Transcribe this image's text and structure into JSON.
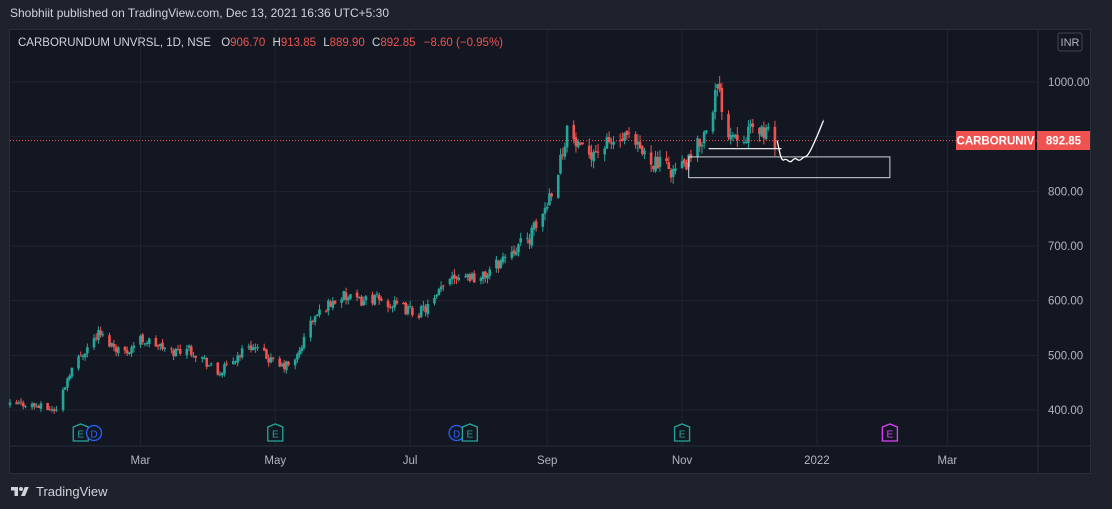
{
  "header": {
    "published_text": "Shobhiit published on TradingView.com, Dec 13, 2021 16:36 UTC+5:30"
  },
  "symbol_bar": {
    "name": "CARBORUNDUM UNVRSL, 1D, NSE",
    "o_label": "O",
    "o_value": "906.70",
    "h_label": "H",
    "h_value": "913.85",
    "l_label": "L",
    "l_value": "889.90",
    "c_label": "C",
    "c_value": "892.85",
    "change": "−8.60 (−0.95%)"
  },
  "currency_button": "INR",
  "price_tag": {
    "symbol": "CARBORUNIV",
    "price": "892.85"
  },
  "footer": {
    "brand": "TradingView"
  },
  "colors": {
    "up": "#26a69a",
    "down": "#ef5350",
    "background": "#131722",
    "text": "#b2b5be",
    "grid": "#1f2430"
  },
  "events": [
    {
      "date": "2021-02-02",
      "type": "E"
    },
    {
      "date": "2021-02-08",
      "type": "D"
    },
    {
      "date": "2021-05-01",
      "type": "E"
    },
    {
      "date": "2021-07-22",
      "type": "D"
    },
    {
      "date": "2021-07-28",
      "type": "E"
    },
    {
      "date": "2021-11-01",
      "type": "E"
    },
    {
      "date": "2022-02-03",
      "type": "E"
    }
  ],
  "chart_data": {
    "type": "candlestick",
    "symbol": "CARBORUNDUM UNVRSL",
    "interval": "1D",
    "exchange": "NSE",
    "x_range": [
      "2021-01-01",
      "2022-04-11"
    ],
    "x_tick_labels": [
      {
        "date": "2021-03-01",
        "label": "Mar"
      },
      {
        "date": "2021-05-01",
        "label": "May"
      },
      {
        "date": "2021-07-01",
        "label": "Jul"
      },
      {
        "date": "2021-09-01",
        "label": "Sep"
      },
      {
        "date": "2021-11-01",
        "label": "Nov"
      },
      {
        "date": "2022-01-01",
        "label": "2022"
      },
      {
        "date": "2022-03-01",
        "label": "Mar"
      }
    ],
    "y_range": [
      330,
      1040
    ],
    "y_ticks": [
      400,
      500,
      600,
      700,
      800,
      900,
      1000
    ],
    "y_tick_labels": [
      "400.00",
      "500.00",
      "600.00",
      "700.00",
      "800.00",
      "900.00",
      "1000.00"
    ],
    "last_price": 892.85,
    "price_path": [
      [
        "2021-01-01",
        408
      ],
      [
        "2021-01-08",
        412
      ],
      [
        "2021-01-15",
        405
      ],
      [
        "2021-01-22",
        400
      ],
      [
        "2021-01-28",
        470
      ],
      [
        "2021-02-03",
        505
      ],
      [
        "2021-02-10",
        540
      ],
      [
        "2021-02-16",
        520
      ],
      [
        "2021-02-22",
        505
      ],
      [
        "2021-03-01",
        530
      ],
      [
        "2021-03-08",
        520
      ],
      [
        "2021-03-15",
        505
      ],
      [
        "2021-03-22",
        515
      ],
      [
        "2021-03-29",
        495
      ],
      [
        "2021-04-05",
        465
      ],
      [
        "2021-04-12",
        490
      ],
      [
        "2021-04-19",
        520
      ],
      [
        "2021-04-26",
        500
      ],
      [
        "2021-05-03",
        478
      ],
      [
        "2021-05-10",
        488
      ],
      [
        "2021-05-17",
        560
      ],
      [
        "2021-05-24",
        590
      ],
      [
        "2021-05-31",
        608
      ],
      [
        "2021-06-07",
        598
      ],
      [
        "2021-06-14",
        605
      ],
      [
        "2021-06-21",
        595
      ],
      [
        "2021-06-28",
        585
      ],
      [
        "2021-07-05",
        578
      ],
      [
        "2021-07-12",
        598
      ],
      [
        "2021-07-19",
        648
      ],
      [
        "2021-07-26",
        648
      ],
      [
        "2021-08-02",
        640
      ],
      [
        "2021-08-09",
        665
      ],
      [
        "2021-08-16",
        695
      ],
      [
        "2021-08-23",
        710
      ],
      [
        "2021-08-30",
        758
      ],
      [
        "2021-09-06",
        840
      ],
      [
        "2021-09-10",
        915
      ],
      [
        "2021-09-16",
        870
      ],
      [
        "2021-09-23",
        875
      ],
      [
        "2021-09-30",
        888
      ],
      [
        "2021-10-07",
        895
      ],
      [
        "2021-10-14",
        870
      ],
      [
        "2021-10-21",
        850
      ],
      [
        "2021-10-28",
        838
      ],
      [
        "2021-11-04",
        852
      ],
      [
        "2021-11-11",
        905
      ],
      [
        "2021-11-17",
        990
      ],
      [
        "2021-11-22",
        910
      ],
      [
        "2021-11-29",
        905
      ],
      [
        "2021-12-06",
        915
      ],
      [
        "2021-12-13",
        893
      ]
    ]
  },
  "drawings": {
    "horizontal_line": {
      "from": "2021-11-13",
      "to": "2021-12-16",
      "price": 878
    },
    "rectangle": {
      "from": "2021-11-04",
      "to": "2022-02-03",
      "top": 863,
      "bottom": 825
    },
    "projection_curve": [
      [
        "2021-12-14",
        893
      ],
      [
        "2021-12-16",
        855
      ],
      [
        "2021-12-18",
        860
      ],
      [
        "2021-12-20",
        852
      ],
      [
        "2021-12-22",
        862
      ],
      [
        "2021-12-24",
        855
      ],
      [
        "2021-12-26",
        863
      ],
      [
        "2021-12-28",
        865
      ],
      [
        "2022-01-01",
        900
      ],
      [
        "2022-01-04",
        930
      ]
    ]
  }
}
